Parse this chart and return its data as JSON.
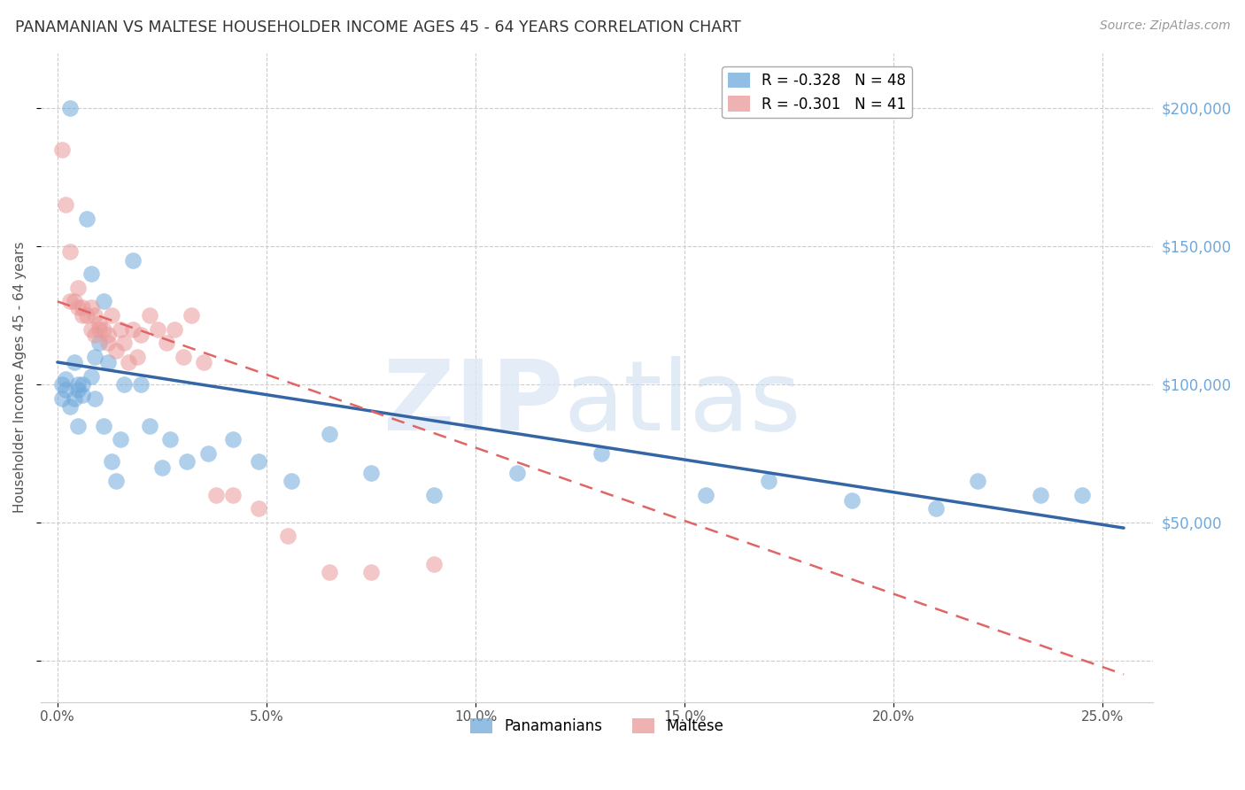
{
  "title": "PANAMANIAN VS MALTESE HOUSEHOLDER INCOME AGES 45 - 64 YEARS CORRELATION CHART",
  "source": "Source: ZipAtlas.com",
  "ylabel": "Householder Income Ages 45 - 64 years",
  "xlabel_ticks": [
    "0.0%",
    "5.0%",
    "10.0%",
    "15.0%",
    "20.0%",
    "25.0%"
  ],
  "xlabel_vals": [
    0.0,
    0.05,
    0.1,
    0.15,
    0.2,
    0.25
  ],
  "ylabel_vals": [
    0,
    50000,
    100000,
    150000,
    200000
  ],
  "ylim": [
    -15000,
    220000
  ],
  "xlim": [
    -0.004,
    0.262
  ],
  "legend_panamanian": "R = -0.328   N = 48",
  "legend_maltese": "R = -0.301   N = 41",
  "panamanian_color": "#6fa8dc",
  "maltese_color": "#ea9999",
  "trendline_pan_color": "#3465a4",
  "trendline_malt_color": "#e06666",
  "background_color": "#ffffff",
  "grid_color": "#cccccc",
  "panamanian_x": [
    0.001,
    0.001,
    0.002,
    0.002,
    0.003,
    0.003,
    0.004,
    0.004,
    0.005,
    0.005,
    0.005,
    0.006,
    0.006,
    0.007,
    0.008,
    0.008,
    0.009,
    0.009,
    0.01,
    0.011,
    0.011,
    0.012,
    0.013,
    0.014,
    0.015,
    0.016,
    0.018,
    0.02,
    0.022,
    0.025,
    0.027,
    0.031,
    0.036,
    0.042,
    0.048,
    0.056,
    0.065,
    0.075,
    0.09,
    0.11,
    0.13,
    0.155,
    0.17,
    0.19,
    0.21,
    0.22,
    0.235,
    0.245
  ],
  "panamanian_y": [
    100000,
    95000,
    102000,
    98000,
    200000,
    92000,
    108000,
    95000,
    100000,
    98000,
    85000,
    100000,
    96000,
    160000,
    140000,
    103000,
    110000,
    95000,
    115000,
    130000,
    85000,
    108000,
    72000,
    65000,
    80000,
    100000,
    145000,
    100000,
    85000,
    70000,
    80000,
    72000,
    75000,
    80000,
    72000,
    65000,
    82000,
    68000,
    60000,
    68000,
    75000,
    60000,
    65000,
    58000,
    55000,
    65000,
    60000,
    60000
  ],
  "maltese_x": [
    0.001,
    0.002,
    0.003,
    0.003,
    0.004,
    0.005,
    0.005,
    0.006,
    0.006,
    0.007,
    0.008,
    0.008,
    0.009,
    0.009,
    0.01,
    0.01,
    0.011,
    0.012,
    0.012,
    0.013,
    0.014,
    0.015,
    0.016,
    0.017,
    0.018,
    0.019,
    0.02,
    0.022,
    0.024,
    0.026,
    0.028,
    0.03,
    0.032,
    0.035,
    0.038,
    0.042,
    0.048,
    0.055,
    0.065,
    0.075,
    0.09
  ],
  "maltese_y": [
    185000,
    165000,
    148000,
    130000,
    130000,
    135000,
    128000,
    125000,
    128000,
    125000,
    128000,
    120000,
    125000,
    118000,
    122000,
    120000,
    120000,
    115000,
    118000,
    125000,
    112000,
    120000,
    115000,
    108000,
    120000,
    110000,
    118000,
    125000,
    120000,
    115000,
    120000,
    110000,
    125000,
    108000,
    60000,
    60000,
    55000,
    45000,
    32000,
    32000,
    35000
  ],
  "pan_trend_x": [
    0.0,
    0.255
  ],
  "pan_trend_y": [
    108000,
    48000
  ],
  "malt_trend_x": [
    0.0,
    0.255
  ],
  "malt_trend_y": [
    130000,
    -5000
  ]
}
